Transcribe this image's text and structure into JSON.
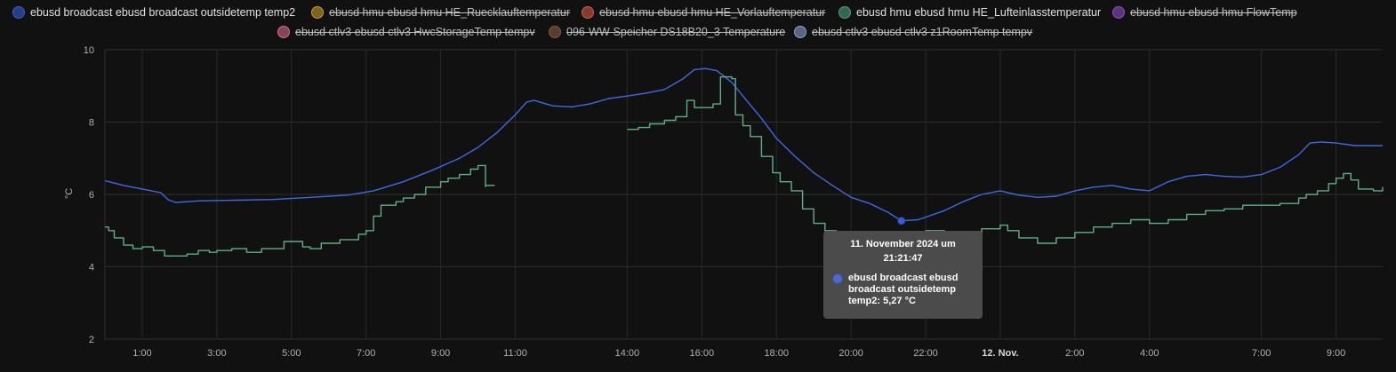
{
  "legend": [
    {
      "label": "ebusd broadcast ebusd broadcast outsidetemp temp2",
      "color": "#3b5bd6",
      "hidden": false
    },
    {
      "label": "ebusd hmu ebusd hmu HE_Ruecklauftemperatur",
      "color": "#c99a2e",
      "hidden": true
    },
    {
      "label": "ebusd hmu ebusd hmu HE_Vorlauftemperatur",
      "color": "#d25a4a",
      "hidden": true
    },
    {
      "label": "ebusd hmu ebusd hmu HE_Lufteinlasstemperatur",
      "color": "#4fa07a",
      "hidden": false
    },
    {
      "label": "ebusd hmu ebusd hmu FlowTemp",
      "color": "#8a4fc4",
      "hidden": true
    },
    {
      "label": "ebusd ctlv3 ebusd ctlv3 HwcStorageTemp tempv",
      "color": "#d46a8a",
      "hidden": true
    },
    {
      "label": "096-WW-Speicher DS18B20_3 Temperature",
      "color": "#8a5a40",
      "hidden": true
    },
    {
      "label": "ebusd ctlv3 ebusd ctlv3 z1RoomTemp tempv",
      "color": "#8aa0cc",
      "hidden": true
    }
  ],
  "tooltip": {
    "date_line1": "11. November 2024 um",
    "date_line2": "21:21:47",
    "series_line1": "ebusd broadcast ebusd",
    "series_line2": "broadcast outsidetemp",
    "series_line3": "temp2: 5,27 °C"
  },
  "chart_data": {
    "type": "line",
    "ylabel": "°C",
    "ylim": [
      2,
      10
    ],
    "yticks": [
      "10",
      "8",
      "6",
      "4",
      "2"
    ],
    "xlim_hours": [
      0,
      34.25
    ],
    "xticks": [
      {
        "h": 1,
        "label": "1:00"
      },
      {
        "h": 3,
        "label": "3:00"
      },
      {
        "h": 5,
        "label": "5:00"
      },
      {
        "h": 7,
        "label": "7:00"
      },
      {
        "h": 9,
        "label": "9:00"
      },
      {
        "h": 11,
        "label": "11:00"
      },
      {
        "h": 14,
        "label": "14:00"
      },
      {
        "h": 16,
        "label": "16:00"
      },
      {
        "h": 18,
        "label": "18:00"
      },
      {
        "h": 20,
        "label": "20:00"
      },
      {
        "h": 22,
        "label": "22:00"
      },
      {
        "h": 24,
        "label": "12. Nov.",
        "bold": true
      },
      {
        "h": 26,
        "label": "2:00"
      },
      {
        "h": 28,
        "label": "4:00"
      },
      {
        "h": 31,
        "label": "7:00"
      },
      {
        "h": 33,
        "label": "9:00"
      }
    ],
    "grid": true,
    "series": [
      {
        "name": "ebusd broadcast ebusd broadcast outsidetemp temp2",
        "color": "#4169e1",
        "step": false,
        "points": [
          [
            0.0,
            6.38
          ],
          [
            0.5,
            6.25
          ],
          [
            1.0,
            6.15
          ],
          [
            1.5,
            6.05
          ],
          [
            1.7,
            5.85
          ],
          [
            1.9,
            5.78
          ],
          [
            2.5,
            5.82
          ],
          [
            3.5,
            5.84
          ],
          [
            4.5,
            5.86
          ],
          [
            5.5,
            5.92
          ],
          [
            6.5,
            5.98
          ],
          [
            7.2,
            6.1
          ],
          [
            8.0,
            6.35
          ],
          [
            8.8,
            6.68
          ],
          [
            9.5,
            7.0
          ],
          [
            10.0,
            7.3
          ],
          [
            10.5,
            7.7
          ],
          [
            11.0,
            8.2
          ],
          [
            11.3,
            8.55
          ],
          [
            11.5,
            8.6
          ],
          [
            12.0,
            8.45
          ],
          [
            12.5,
            8.42
          ],
          [
            13.0,
            8.5
          ],
          [
            13.5,
            8.65
          ],
          [
            14.0,
            8.72
          ],
          [
            14.5,
            8.8
          ],
          [
            15.0,
            8.9
          ],
          [
            15.5,
            9.2
          ],
          [
            15.8,
            9.45
          ],
          [
            16.1,
            9.48
          ],
          [
            16.4,
            9.42
          ],
          [
            16.8,
            9.1
          ],
          [
            17.2,
            8.6
          ],
          [
            17.6,
            8.1
          ],
          [
            18.0,
            7.55
          ],
          [
            18.5,
            7.05
          ],
          [
            19.0,
            6.6
          ],
          [
            19.5,
            6.25
          ],
          [
            20.0,
            5.92
          ],
          [
            20.5,
            5.75
          ],
          [
            21.0,
            5.5
          ],
          [
            21.35,
            5.27
          ],
          [
            21.8,
            5.3
          ],
          [
            22.5,
            5.55
          ],
          [
            23.0,
            5.8
          ],
          [
            23.5,
            6.0
          ],
          [
            24.0,
            6.1
          ],
          [
            24.5,
            5.98
          ],
          [
            25.0,
            5.92
          ],
          [
            25.5,
            5.95
          ],
          [
            26.0,
            6.1
          ],
          [
            26.5,
            6.2
          ],
          [
            27.0,
            6.25
          ],
          [
            27.5,
            6.15
          ],
          [
            28.0,
            6.1
          ],
          [
            28.5,
            6.35
          ],
          [
            29.0,
            6.5
          ],
          [
            29.5,
            6.55
          ],
          [
            30.0,
            6.5
          ],
          [
            30.5,
            6.48
          ],
          [
            31.0,
            6.55
          ],
          [
            31.5,
            6.75
          ],
          [
            32.0,
            7.1
          ],
          [
            32.3,
            7.42
          ],
          [
            32.6,
            7.45
          ],
          [
            33.0,
            7.42
          ],
          [
            33.5,
            7.35
          ],
          [
            34.25,
            7.35
          ]
        ]
      },
      {
        "name": "ebusd hmu ebusd hmu HE_Lufteinlasstemperatur",
        "color": "#5fae8a",
        "step": true,
        "segments": [
          [
            [
              0.0,
              5.1
            ],
            [
              0.1,
              5.0
            ],
            [
              0.25,
              4.8
            ],
            [
              0.5,
              4.6
            ],
            [
              0.75,
              4.5
            ],
            [
              1.0,
              4.55
            ],
            [
              1.3,
              4.45
            ],
            [
              1.6,
              4.3
            ],
            [
              2.2,
              4.35
            ],
            [
              2.5,
              4.45
            ],
            [
              2.8,
              4.4
            ],
            [
              3.0,
              4.45
            ],
            [
              3.4,
              4.5
            ],
            [
              3.8,
              4.4
            ],
            [
              4.2,
              4.5
            ],
            [
              4.8,
              4.7
            ],
            [
              5.3,
              4.55
            ],
            [
              5.5,
              4.5
            ],
            [
              5.8,
              4.65
            ],
            [
              6.3,
              4.75
            ],
            [
              6.8,
              4.9
            ],
            [
              7.0,
              5.0
            ],
            [
              7.2,
              5.4
            ],
            [
              7.4,
              5.7
            ],
            [
              7.8,
              5.8
            ],
            [
              8.0,
              5.9
            ],
            [
              8.3,
              6.0
            ],
            [
              8.6,
              6.2
            ],
            [
              9.0,
              6.35
            ],
            [
              9.2,
              6.45
            ],
            [
              9.5,
              6.55
            ],
            [
              9.8,
              6.7
            ],
            [
              10.0,
              6.8
            ],
            [
              10.2,
              6.2
            ]
          ],
          [
            [
              10.2,
              6.25
            ],
            [
              10.45,
              6.25
            ]
          ],
          [
            [
              14.0,
              7.8
            ],
            [
              14.3,
              7.85
            ],
            [
              14.6,
              7.95
            ],
            [
              15.0,
              8.05
            ],
            [
              15.3,
              8.15
            ],
            [
              15.6,
              8.6
            ],
            [
              15.8,
              8.4
            ],
            [
              16.0,
              8.4
            ],
            [
              16.3,
              8.5
            ],
            [
              16.5,
              9.25
            ],
            [
              16.8,
              9.2
            ],
            [
              16.9,
              8.2
            ],
            [
              17.1,
              7.9
            ],
            [
              17.3,
              7.6
            ],
            [
              17.6,
              7.05
            ],
            [
              17.9,
              6.6
            ],
            [
              18.1,
              6.35
            ],
            [
              18.4,
              6.1
            ],
            [
              18.7,
              5.6
            ],
            [
              19.0,
              5.2
            ],
            [
              19.3,
              5.0
            ],
            [
              19.6,
              4.9
            ],
            [
              20.0,
              4.85
            ],
            [
              20.5,
              4.8
            ],
            [
              21.0,
              4.85
            ],
            [
              21.5,
              4.9
            ],
            [
              22.0,
              5.0
            ],
            [
              22.5,
              4.75
            ],
            [
              23.0,
              4.9
            ],
            [
              23.5,
              5.05
            ],
            [
              24.0,
              5.15
            ],
            [
              24.2,
              5.0
            ],
            [
              24.5,
              4.8
            ],
            [
              25.0,
              4.65
            ],
            [
              25.5,
              4.8
            ],
            [
              26.0,
              4.95
            ],
            [
              26.5,
              5.1
            ],
            [
              27.0,
              5.2
            ],
            [
              27.5,
              5.3
            ],
            [
              28.0,
              5.2
            ],
            [
              28.5,
              5.3
            ],
            [
              29.0,
              5.45
            ],
            [
              29.5,
              5.55
            ],
            [
              30.0,
              5.6
            ],
            [
              30.5,
              5.7
            ],
            [
              31.0,
              5.7
            ],
            [
              31.5,
              5.75
            ],
            [
              32.0,
              5.9
            ],
            [
              32.2,
              6.0
            ],
            [
              32.5,
              6.1
            ],
            [
              32.8,
              6.3
            ],
            [
              33.0,
              6.45
            ],
            [
              33.2,
              6.58
            ],
            [
              33.4,
              6.4
            ],
            [
              33.6,
              6.15
            ],
            [
              34.0,
              6.1
            ],
            [
              34.25,
              6.2
            ]
          ]
        ]
      }
    ],
    "marker": {
      "h": 21.35,
      "v": 5.27
    }
  }
}
